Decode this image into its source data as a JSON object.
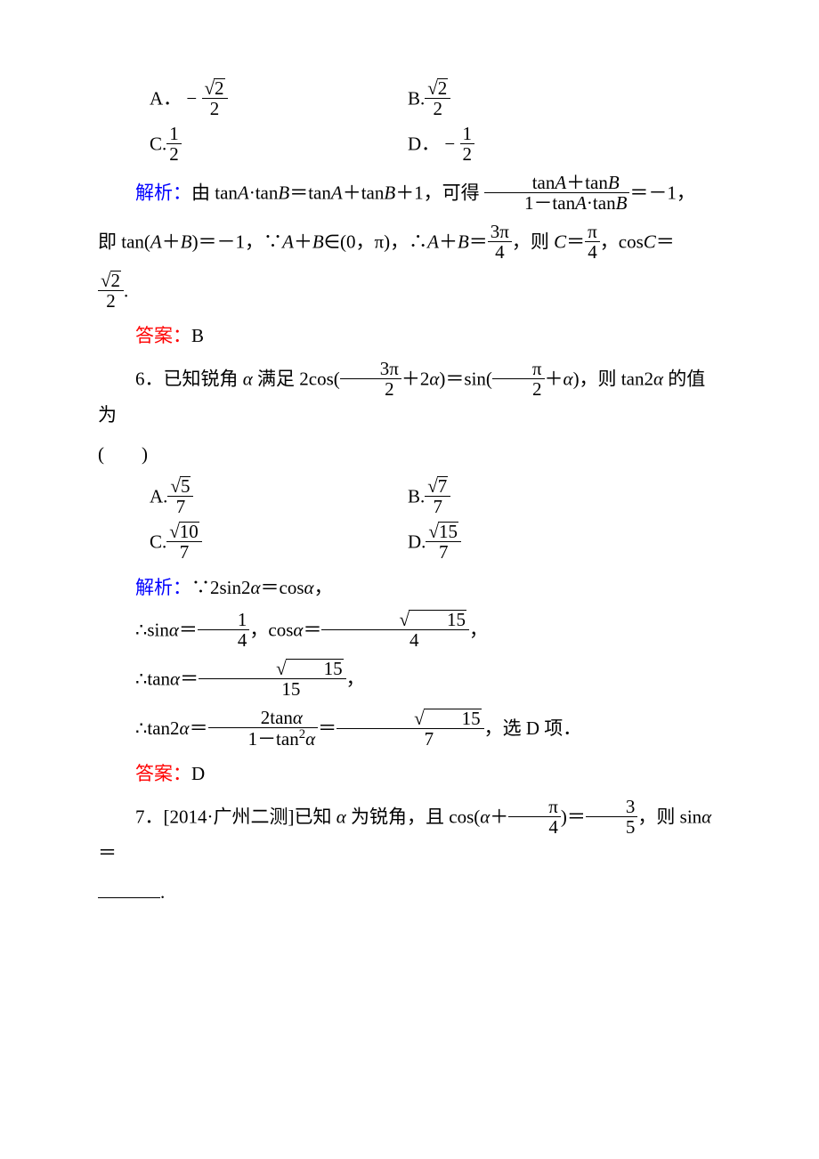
{
  "q5": {
    "choices": {
      "A": {
        "label": "A．",
        "sign": "−",
        "num": "2",
        "den": "2"
      },
      "B": {
        "label": "B.",
        "num": "2",
        "den": "2"
      },
      "C": {
        "label": "C.",
        "num": "1",
        "den": "2"
      },
      "D": {
        "label": "D．",
        "sign": "−",
        "num": "1",
        "den": "2"
      }
    },
    "analysis_label": "解析：",
    "analysis_1a": "由 tan",
    "analysis_A": "A",
    "analysis_dot": "·tan",
    "analysis_B": "B",
    "analysis_1b": "＝tan",
    "analysis_1c": "＋tan",
    "analysis_1d": "＋1，可得",
    "frac_big_num_a": "tan",
    "frac_big_num_b": "＋tan",
    "frac_big_den_a": "1－tan",
    "frac_big_den_b": "·tan",
    "analysis_2a": "＝－1，",
    "analysis_3a": "即 tan(",
    "analysis_3b": "＋",
    "analysis_3c": ")＝－1，∵",
    "analysis_3d": "∈(0，π)，∴",
    "analysis_3e": "＝",
    "three_pi": "3π",
    "four": "4",
    "analysis_3f": "，则 ",
    "C": "C",
    "analysis_3g": "＝",
    "pi": "π",
    "analysis_3h": "，cos",
    "analysis_3i": "＝",
    "analysis_4a": ".",
    "answer_label": "答案：",
    "answer": "B"
  },
  "q6": {
    "number": "6．",
    "stem_a": "已知锐角 ",
    "alpha": "α",
    "stem_b": " 满足 2cos(",
    "three_pi": "3π",
    "two": "2",
    "stem_c": "＋2",
    "stem_d": ")＝sin(",
    "pi": "π",
    "stem_e": "＋",
    "stem_f": ")，则 tan2",
    "stem_g": " 的值为",
    "paren": "(　　)",
    "choices": {
      "A": {
        "label": "A.",
        "num": "5",
        "den": "7"
      },
      "B": {
        "label": "B.",
        "num": "7",
        "den": "7"
      },
      "C": {
        "label": "C.",
        "num": "10",
        "den": "7"
      },
      "D": {
        "label": "D.",
        "num": "15",
        "den": "7"
      }
    },
    "analysis_label": "解析：",
    "line1_a": "∵2sin2",
    "line1_b": "＝cos",
    "line1_c": "，",
    "line2_a": "∴sin",
    "line2_b": "＝",
    "one": "1",
    "four": "4",
    "line2_c": "，cos",
    "line2_d": "＝",
    "sqrt15": "15",
    "line2_e": "，",
    "line3_a": "∴tan",
    "line3_b": "＝",
    "fifteen": "15",
    "line3_c": "，",
    "line4_a": "∴tan2",
    "line4_b": "＝",
    "frac2_num": "2tan",
    "frac2_den_a": "1－tan",
    "frac2_den_b": "2",
    "line4_c": "＝",
    "seven": "7",
    "line4_d": "，选 D 项．",
    "answer_label": "答案：",
    "answer": "D"
  },
  "q7": {
    "number": "7．",
    "source": "[2014·广州二测]",
    "stem_a": "已知 ",
    "alpha": "α",
    "stem_b": " 为锐角，且 cos(",
    "stem_c": "＋",
    "pi": "π",
    "four": "4",
    "stem_d": ")＝",
    "three": "3",
    "five": "5",
    "stem_e": "，则 sin",
    "stem_f": "＝",
    "period": "."
  }
}
